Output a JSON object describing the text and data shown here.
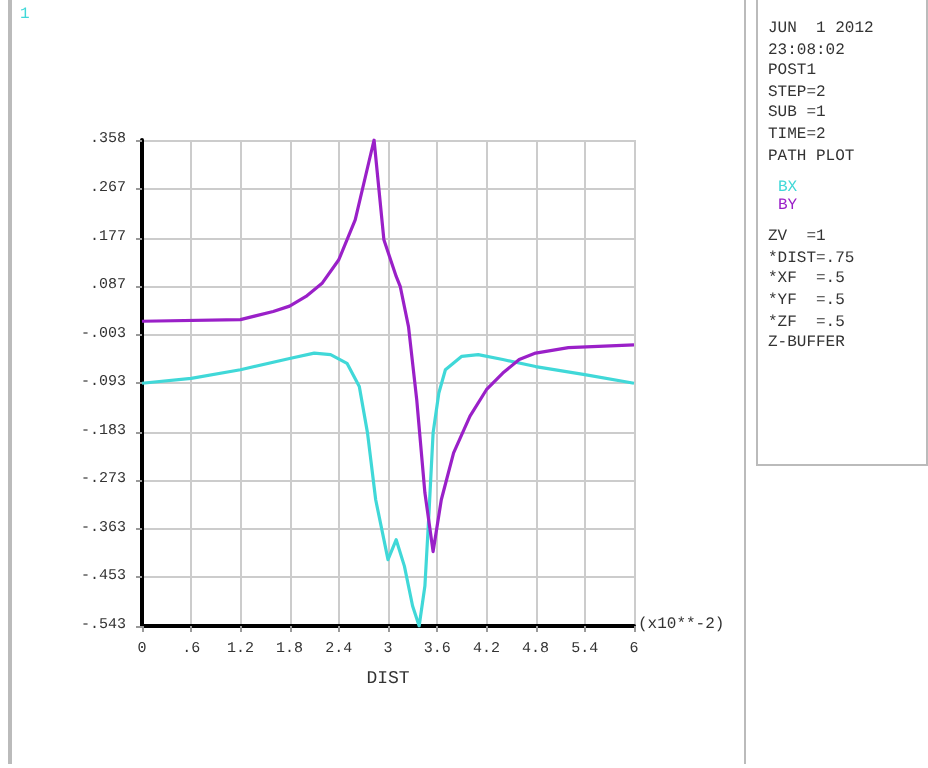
{
  "chart_data": {
    "type": "line",
    "xlabel": "DIST",
    "legend": "right",
    "grid": true,
    "marker": "none",
    "annotations": [
      "1",
      "(x10**-2)",
      "JUN  1 2012",
      "23:08:02",
      "POST1",
      "STEP=2",
      "SUB =1",
      "TIME=2",
      "PATH PLOT",
      "ZV  =1",
      "*DIST=.75",
      "*XF  =.5",
      "*YF  =.5",
      "*ZF  =.5",
      "Z-BUFFER"
    ],
    "xlim": [
      0,
      6
    ],
    "xticks": [
      0,
      {
        "value": 0.6,
        "label": ".6"
      },
      1.2,
      1.8,
      2.4,
      3,
      3.6,
      4.2,
      4.8,
      5.4,
      6
    ],
    "ylim": [
      -0.543,
      0.358
    ],
    "yticks": [
      {
        "value": 0.358,
        "label": ".358"
      },
      {
        "value": 0.267,
        "label": ".267"
      },
      {
        "value": 0.177,
        "label": ".177"
      },
      {
        "value": 0.087,
        "label": ".087"
      },
      {
        "value": -0.003,
        "label": "-.003"
      },
      {
        "value": -0.093,
        "label": "-.093"
      },
      {
        "value": -0.183,
        "label": "-.183"
      },
      {
        "value": -0.273,
        "label": "-.273"
      },
      {
        "value": -0.363,
        "label": "-.363"
      },
      {
        "value": -0.453,
        "label": "-.453"
      },
      {
        "value": -0.543,
        "label": "-.543"
      }
    ],
    "series": [
      {
        "name": "BX",
        "color": "#40d8d8",
        "x": [
          0,
          0.6,
          1.2,
          1.8,
          2.1,
          2.3,
          2.5,
          2.65,
          2.75,
          2.85,
          2.95,
          3.0,
          3.1,
          3.2,
          3.3,
          3.38,
          3.45,
          3.5,
          3.55,
          3.62,
          3.7,
          3.9,
          4.1,
          4.4,
          4.8,
          5.4,
          6
        ],
        "values": [
          -0.093,
          -0.084,
          -0.068,
          -0.047,
          -0.037,
          -0.04,
          -0.056,
          -0.099,
          -0.185,
          -0.309,
          -0.383,
          -0.42,
          -0.383,
          -0.432,
          -0.506,
          -0.543,
          -0.469,
          -0.333,
          -0.185,
          -0.111,
          -0.068,
          -0.043,
          -0.04,
          -0.049,
          -0.062,
          -0.077,
          -0.093
        ]
      },
      {
        "name": "BY",
        "color": "#9a20c8",
        "x": [
          0,
          1.2,
          1.6,
          1.8,
          2.0,
          2.2,
          2.4,
          2.6,
          2.83,
          2.95,
          3.1,
          3.15,
          3.25,
          3.35,
          3.45,
          3.55,
          3.65,
          3.8,
          4.0,
          4.2,
          4.4,
          4.6,
          4.8,
          5.2,
          6
        ],
        "values": [
          0.022,
          0.025,
          0.04,
          0.05,
          0.068,
          0.093,
          0.136,
          0.21,
          0.358,
          0.173,
          0.105,
          0.086,
          0.012,
          -0.123,
          -0.296,
          -0.405,
          -0.309,
          -0.222,
          -0.154,
          -0.105,
          -0.074,
          -0.049,
          -0.037,
          -0.027,
          -0.022
        ]
      }
    ]
  }
}
